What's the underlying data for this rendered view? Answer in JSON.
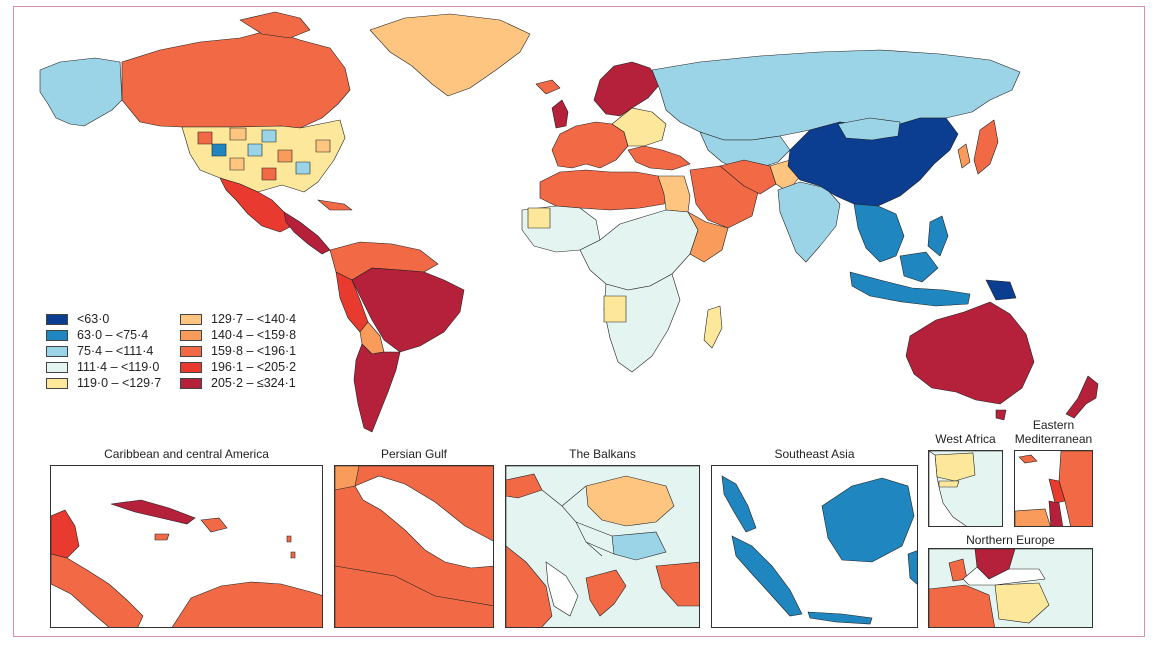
{
  "palette": {
    "c1": "#0b3d91",
    "c2": "#1f86c0",
    "c3": "#9bd4e6",
    "c4": "#e4f4f1",
    "c5": "#fde79a",
    "c6": "#fdc57f",
    "c7": "#f89b5b",
    "c8": "#f26a45",
    "c9": "#e83a2e",
    "c10": "#b5213a",
    "ocean": "#ffffff",
    "border": "#222222",
    "frame": "#d98fb0"
  },
  "legend": {
    "items": [
      {
        "label": "<63·0",
        "color": "#0b3d91"
      },
      {
        "label": "63·0 – <75·4",
        "color": "#1f86c0"
      },
      {
        "label": "75·4 – <111·4",
        "color": "#9bd4e6"
      },
      {
        "label": "111·4 – <119·0",
        "color": "#e4f4f1"
      },
      {
        "label": "119·0 – <129·7",
        "color": "#fde79a"
      },
      {
        "label": "129·7 – <140·4",
        "color": "#fdc57f"
      },
      {
        "label": "140·4 – <159·8",
        "color": "#f89b5b"
      },
      {
        "label": "159·8 – <196·1",
        "color": "#f26a45"
      },
      {
        "label": "196·1 – <205·2",
        "color": "#e83a2e"
      },
      {
        "label": "205·2 – ≤324·1",
        "color": "#b5213a"
      }
    ]
  },
  "insets": {
    "caribbean": "Caribbean and central America",
    "gulf": "Persian Gulf",
    "balkans": "The Balkans",
    "seasia": "Southeast Asia",
    "westafrica": "West Africa",
    "eastmed_line1": "Eastern",
    "eastmed_line2": "Mediterranean",
    "northeurope": "Northern Europe"
  }
}
